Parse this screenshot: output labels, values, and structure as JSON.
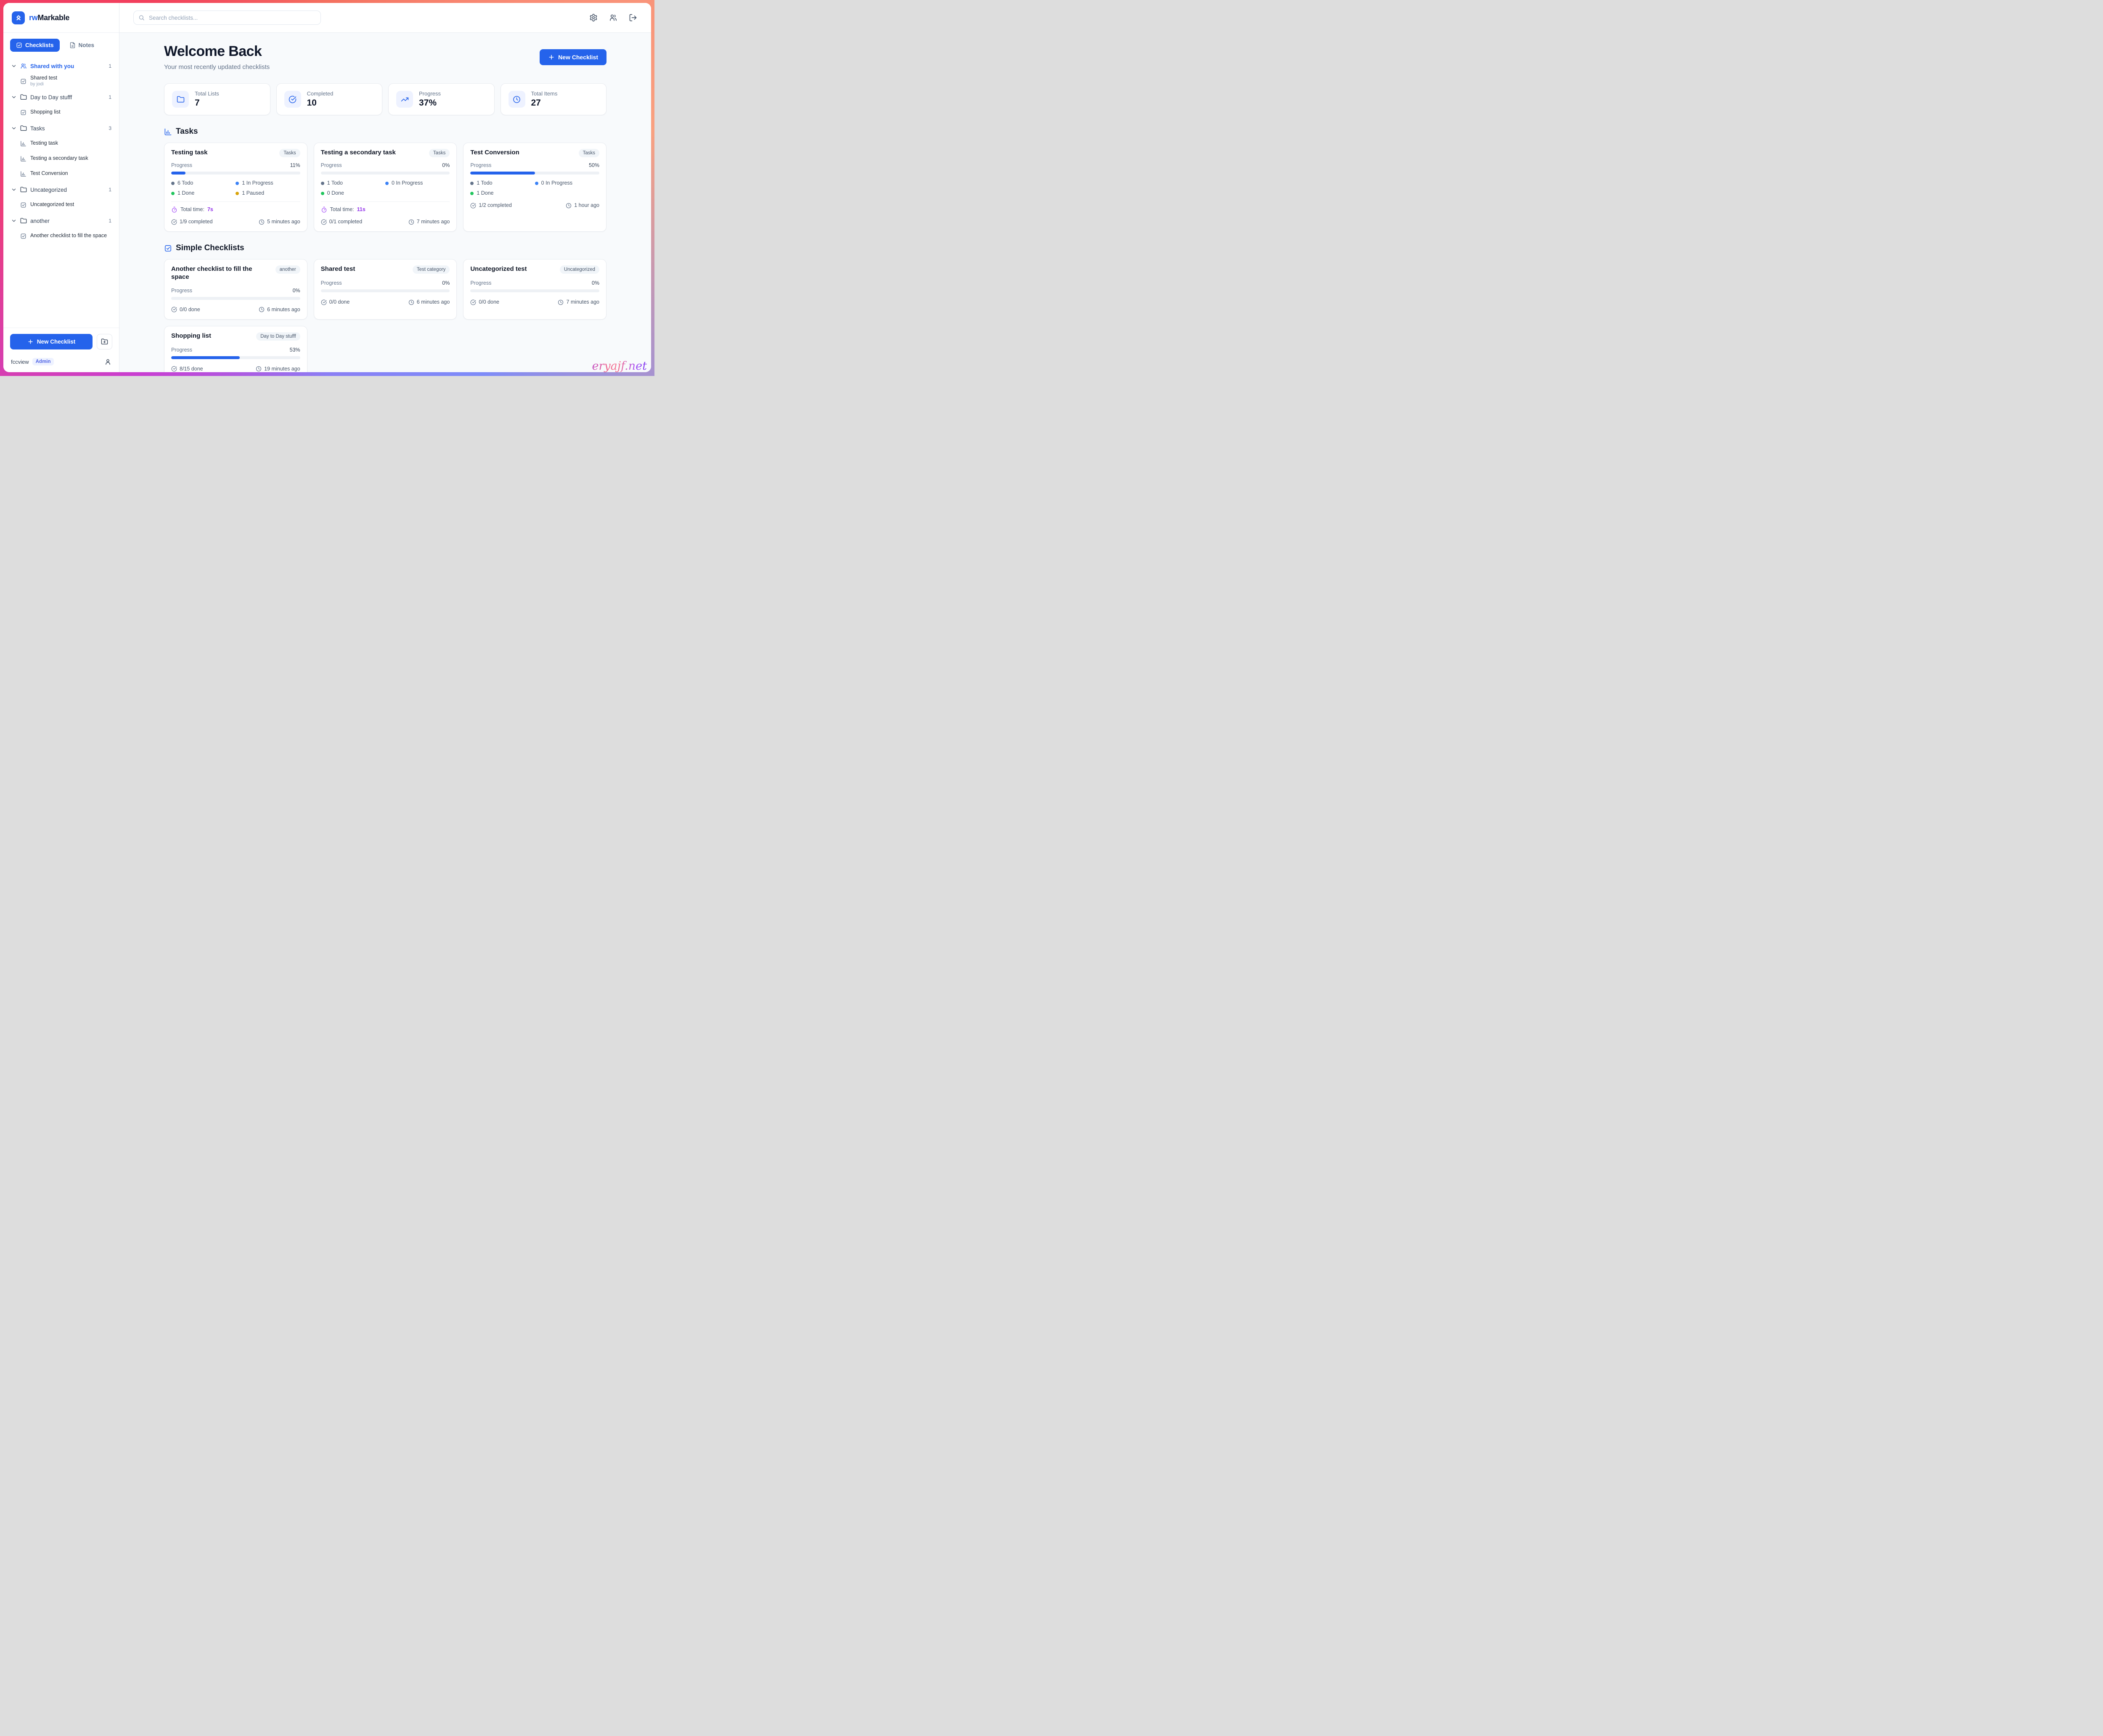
{
  "colors": {
    "primary": "#2563eb",
    "frame_gradient": [
      "#f23f5c",
      "#f98d76",
      "#7d8bf8",
      "#c83ed2"
    ],
    "status_todo": "#64748b",
    "status_in_progress": "#3b82f6",
    "status_done": "#22c55e",
    "status_paused": "#d9a40b",
    "total_time": "#9333ea"
  },
  "sidebar": {
    "logo": {
      "prefix": "rw",
      "suffix": "Markable"
    },
    "tabs": {
      "checklists": "Checklists",
      "notes": "Notes"
    },
    "tree": [
      {
        "label": "Shared with you",
        "count": "1",
        "icon": "users",
        "accent": true,
        "children": [
          {
            "icon": "checkbox",
            "label": "Shared test",
            "sub": "by jodi"
          }
        ]
      },
      {
        "label": "Day to Day stufff",
        "count": "1",
        "icon": "folder",
        "children": [
          {
            "icon": "checkbox",
            "label": "Shopping list"
          }
        ]
      },
      {
        "label": "Tasks",
        "count": "3",
        "icon": "folder",
        "children": [
          {
            "icon": "chart",
            "label": "Testing task"
          },
          {
            "icon": "chart",
            "label": "Testing a secondary task"
          },
          {
            "icon": "chart",
            "label": "Test Conversion"
          }
        ]
      },
      {
        "label": "Uncategorized",
        "count": "1",
        "icon": "folder",
        "children": [
          {
            "icon": "checkbox",
            "label": "Uncategorized test"
          }
        ]
      },
      {
        "label": "another",
        "count": "1",
        "icon": "folder",
        "children": [
          {
            "icon": "checkbox",
            "label": "Another checklist to fill the space"
          }
        ]
      }
    ],
    "new_checklist_label": "New Checklist",
    "user": {
      "name": "fccview",
      "role": "Admin"
    }
  },
  "header": {
    "search_placeholder": "Search checklists..."
  },
  "main": {
    "title": "Welcome Back",
    "subtitle": "Your most recently updated checklists",
    "new_checklist_label": "New Checklist",
    "stats": [
      {
        "icon": "folder",
        "label": "Total Lists",
        "value": "7"
      },
      {
        "icon": "check-circle",
        "label": "Completed",
        "value": "10"
      },
      {
        "icon": "trending-up",
        "label": "Progress",
        "value": "37%"
      },
      {
        "icon": "clock",
        "label": "Total Items",
        "value": "27"
      }
    ],
    "tasks_section": {
      "title": "Tasks",
      "progress_label": "Progress",
      "total_time_label": "Total time:",
      "cards": [
        {
          "title": "Testing task",
          "badge": "Tasks",
          "progress": "11%",
          "pct": 11,
          "statuses": [
            {
              "color": "#64748b",
              "label": "6 Todo"
            },
            {
              "color": "#3b82f6",
              "label": "1 In Progress"
            },
            {
              "color": "#22c55e",
              "label": "1 Done"
            },
            {
              "color": "#d9a40b",
              "label": "1 Paused"
            }
          ],
          "total_time": "7s",
          "completed": "1/9 completed",
          "updated": "5 minutes ago"
        },
        {
          "title": "Testing a secondary task",
          "badge": "Tasks",
          "progress": "0%",
          "pct": 0,
          "statuses": [
            {
              "color": "#64748b",
              "label": "1 Todo"
            },
            {
              "color": "#3b82f6",
              "label": "0 In Progress"
            },
            {
              "color": "#22c55e",
              "label": "0 Done"
            }
          ],
          "total_time": "11s",
          "completed": "0/1 completed",
          "updated": "7 minutes ago"
        },
        {
          "title": "Test Conversion",
          "badge": "Tasks",
          "progress": "50%",
          "pct": 50,
          "statuses": [
            {
              "color": "#64748b",
              "label": "1 Todo"
            },
            {
              "color": "#3b82f6",
              "label": "0 In Progress"
            },
            {
              "color": "#22c55e",
              "label": "1 Done"
            }
          ],
          "total_time": null,
          "completed": "1/2 completed",
          "updated": "1 hour ago"
        }
      ]
    },
    "simple_section": {
      "title": "Simple Checklists",
      "progress_label": "Progress",
      "cards": [
        {
          "title": "Another checklist to fill the space",
          "badge": "another",
          "progress": "0%",
          "pct": 0,
          "done": "0/0 done",
          "updated": "6 minutes ago"
        },
        {
          "title": "Shared test",
          "badge": "Test category",
          "progress": "0%",
          "pct": 0,
          "done": "0/0 done",
          "updated": "6 minutes ago"
        },
        {
          "title": "Uncategorized test",
          "badge": "Uncategorized",
          "progress": "0%",
          "pct": 0,
          "done": "0/0 done",
          "updated": "7 minutes ago"
        },
        {
          "title": "Shopping list",
          "badge": "Day to Day stufff",
          "progress": "53%",
          "pct": 53,
          "done": "8/15 done",
          "updated": "19 minutes ago"
        }
      ]
    }
  },
  "watermark": "eryajf.net"
}
